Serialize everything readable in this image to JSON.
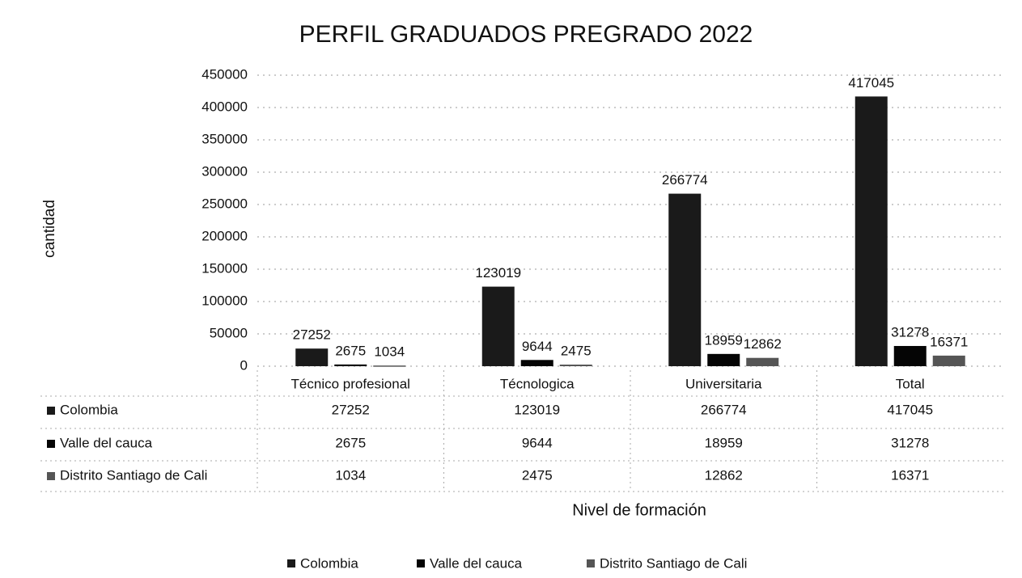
{
  "chart_data": {
    "type": "bar",
    "title": "PERFIL GRADUADOS PREGRADO 2022",
    "y_label": "cantidad",
    "x_label": "Nivel de formación",
    "categories": [
      "Técnico profesional",
      "Técnologica",
      "Universitaria",
      "Total"
    ],
    "series": [
      {
        "name": "Colombia",
        "color": "#1a1a1a",
        "values": [
          27252,
          123019,
          266774,
          417045
        ]
      },
      {
        "name": "Valle del cauca",
        "color": "#050505",
        "values": [
          2675,
          9644,
          18959,
          31278
        ]
      },
      {
        "name": "Distrito Santiago de Cali",
        "color": "#555555",
        "values": [
          1034,
          2475,
          12862,
          16371
        ]
      }
    ],
    "ylim": [
      0,
      450000
    ],
    "yticks": [
      0,
      50000,
      100000,
      150000,
      200000,
      250000,
      300000,
      350000,
      400000,
      450000
    ],
    "grid": true,
    "data_table": true,
    "legend": "bottom"
  }
}
